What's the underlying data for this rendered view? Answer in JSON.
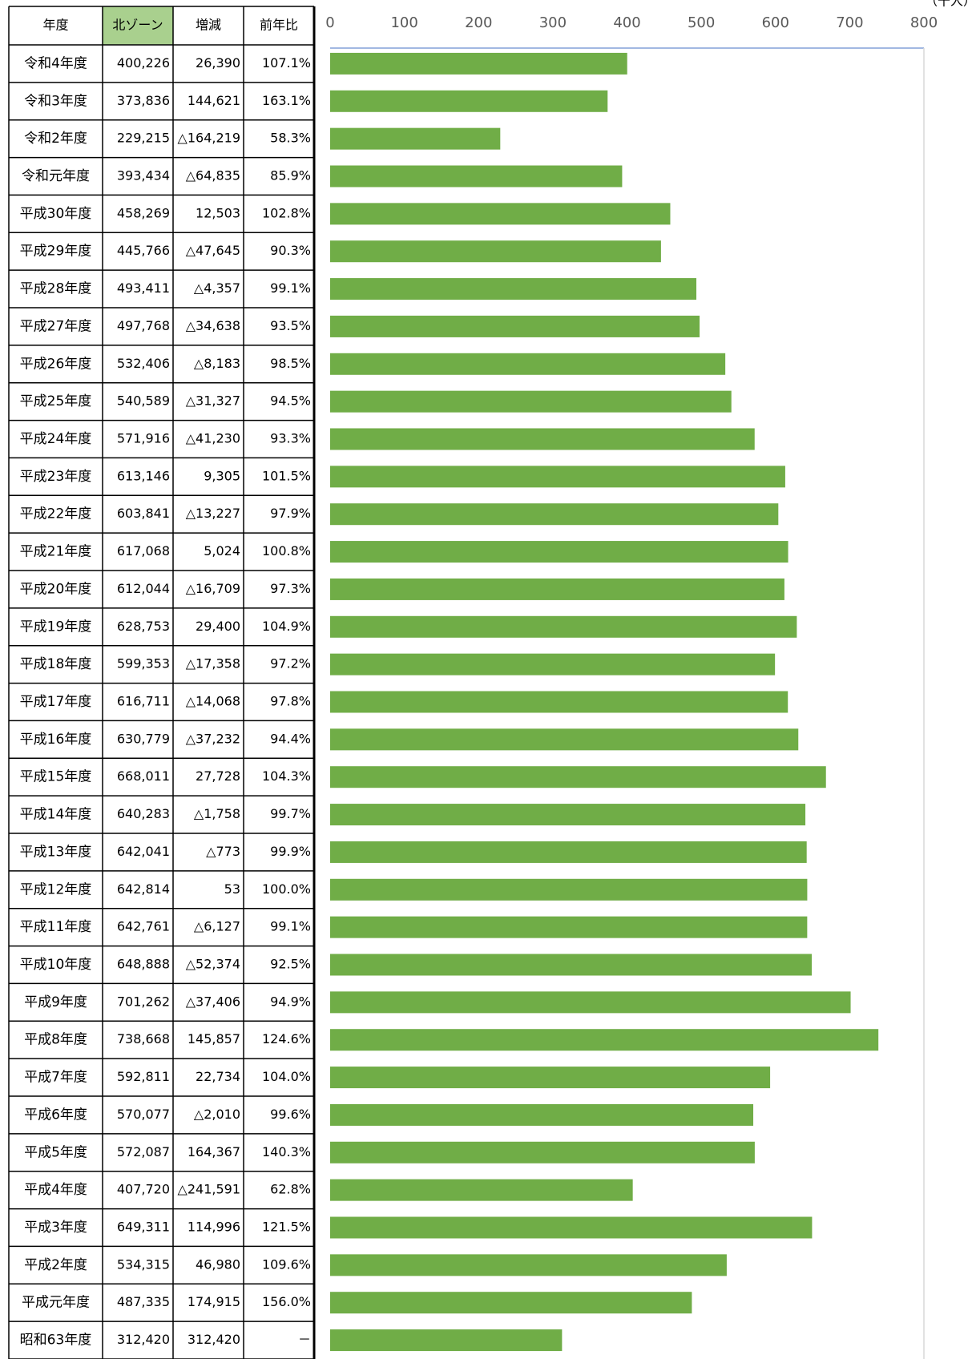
{
  "table": {
    "headers": [
      "年度",
      "北ゾーン",
      "増減",
      "前年比"
    ],
    "rows": [
      [
        "令和4年度",
        "400,226",
        "26,390",
        "107.1%"
      ],
      [
        "令和3年度",
        "373,836",
        "144,621",
        "163.1%"
      ],
      [
        "令和2年度",
        "229,215",
        "△164,219",
        "58.3%"
      ],
      [
        "令和元年度",
        "393,434",
        "△64,835",
        "85.9%"
      ],
      [
        "平成30年度",
        "458,269",
        "12,503",
        "102.8%"
      ],
      [
        "平成29年度",
        "445,766",
        "△47,645",
        "90.3%"
      ],
      [
        "平成28年度",
        "493,411",
        "△4,357",
        "99.1%"
      ],
      [
        "平成27年度",
        "497,768",
        "△34,638",
        "93.5%"
      ],
      [
        "平成26年度",
        "532,406",
        "△8,183",
        "98.5%"
      ],
      [
        "平成25年度",
        "540,589",
        "△31,327",
        "94.5%"
      ],
      [
        "平成24年度",
        "571,916",
        "△41,230",
        "93.3%"
      ],
      [
        "平成23年度",
        "613,146",
        "9,305",
        "101.5%"
      ],
      [
        "平成22年度",
        "603,841",
        "△13,227",
        "97.9%"
      ],
      [
        "平成21年度",
        "617,068",
        "5,024",
        "100.8%"
      ],
      [
        "平成20年度",
        "612,044",
        "△16,709",
        "97.3%"
      ],
      [
        "平成19年度",
        "628,753",
        "29,400",
        "104.9%"
      ],
      [
        "平成18年度",
        "599,353",
        "△17,358",
        "97.2%"
      ],
      [
        "平成17年度",
        "616,711",
        "△14,068",
        "97.8%"
      ],
      [
        "平成16年度",
        "630,779",
        "△37,232",
        "94.4%"
      ],
      [
        "平成15年度",
        "668,011",
        "27,728",
        "104.3%"
      ],
      [
        "平成14年度",
        "640,283",
        "△1,758",
        "99.7%"
      ],
      [
        "平成13年度",
        "642,041",
        "△773",
        "99.9%"
      ],
      [
        "平成12年度",
        "642,814",
        "53",
        "100.0%"
      ],
      [
        "平成11年度",
        "642,761",
        "△6,127",
        "99.1%"
      ],
      [
        "平成10年度",
        "648,888",
        "△52,374",
        "92.5%"
      ],
      [
        "平成9年度",
        "701,262",
        "△37,406",
        "94.9%"
      ],
      [
        "平成8年度",
        "738,668",
        "145,857",
        "124.6%"
      ],
      [
        "平成7年度",
        "592,811",
        "22,734",
        "104.0%"
      ],
      [
        "平成6年度",
        "570,077",
        "△2,010",
        "99.6%"
      ],
      [
        "平成5年度",
        "572,087",
        "164,367",
        "140.3%"
      ],
      [
        "平成4年度",
        "407,720",
        "△241,591",
        "62.8%"
      ],
      [
        "平成3年度",
        "649,311",
        "114,996",
        "121.5%"
      ],
      [
        "平成2年度",
        "534,315",
        "46,980",
        "109.6%"
      ],
      [
        "平成元年度",
        "487,335",
        "174,915",
        "156.0%"
      ],
      [
        "昭和63年度",
        "312,420",
        "312,420",
        "－"
      ]
    ]
  },
  "chart_data": {
    "type": "bar",
    "orientation": "horizontal",
    "unit_label": "（千人）",
    "values": [
      400.226,
      373.836,
      229.215,
      393.434,
      458.269,
      445.766,
      493.411,
      497.768,
      532.406,
      540.589,
      571.916,
      613.146,
      603.841,
      617.068,
      612.044,
      628.753,
      599.353,
      616.711,
      630.779,
      668.011,
      640.283,
      642.041,
      642.814,
      642.761,
      648.888,
      701.262,
      738.668,
      592.811,
      570.077,
      572.087,
      407.72,
      649.311,
      534.315,
      487.335,
      312.42
    ],
    "color": "#70ad47",
    "header_color": "#a9d08e",
    "negative_color": "#ff0000",
    "xlim": [
      0,
      800
    ],
    "xticks": [
      0,
      100,
      200,
      300,
      400,
      500,
      600,
      700,
      800
    ],
    "grid": false
  }
}
